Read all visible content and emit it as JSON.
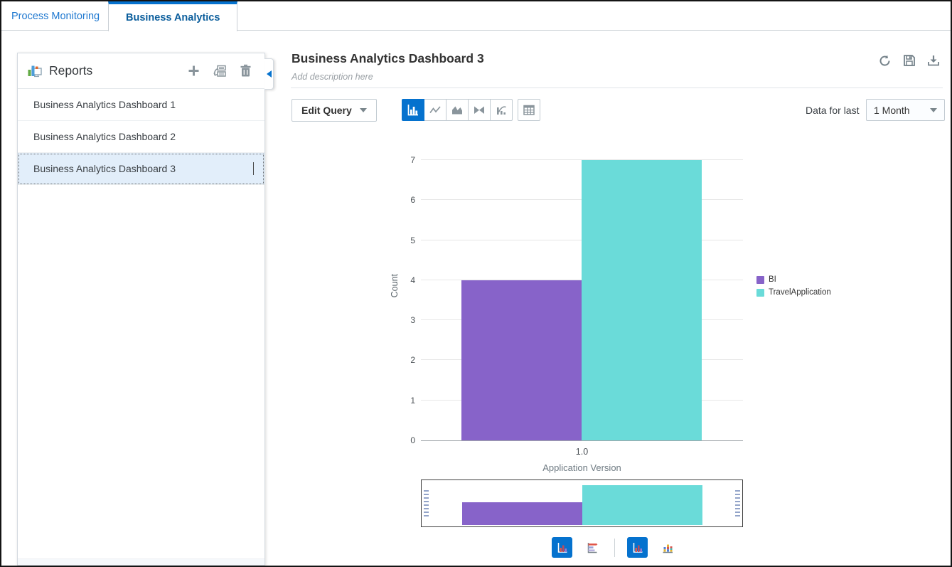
{
  "tabs": [
    {
      "label": "Process Monitoring",
      "active": false
    },
    {
      "label": "Business Analytics",
      "active": true
    }
  ],
  "sidebar": {
    "title": "Reports",
    "icon": "reports-analytics-icon",
    "actions": [
      {
        "name": "add-report",
        "icon": "plus-icon"
      },
      {
        "name": "duplicate-report",
        "icon": "duplicate-icon"
      },
      {
        "name": "delete-report",
        "icon": "trash-icon"
      }
    ],
    "collapse_icon": "collapse-left-icon",
    "items": [
      {
        "label": "Business Analytics Dashboard 1",
        "selected": false
      },
      {
        "label": "Business Analytics Dashboard 2",
        "selected": false
      },
      {
        "label": "Business Analytics Dashboard 3",
        "selected": true
      }
    ]
  },
  "main": {
    "title": "Business Analytics Dashboard 3",
    "description_placeholder": "Add description here",
    "header_actions": [
      {
        "name": "refresh",
        "icon": "refresh-icon"
      },
      {
        "name": "save",
        "icon": "save-icon"
      },
      {
        "name": "download",
        "icon": "download-icon"
      }
    ],
    "toolbar": {
      "edit_query_label": "Edit Query",
      "chart_type_buttons": [
        {
          "icon": "bar-chart-icon",
          "selected": true
        },
        {
          "icon": "line-chart-icon",
          "selected": false
        },
        {
          "icon": "area-chart-icon",
          "selected": false
        },
        {
          "icon": "combo-chart-icon",
          "selected": false
        },
        {
          "icon": "pareto-chart-icon",
          "selected": false
        }
      ],
      "table_button": {
        "icon": "table-icon",
        "selected": false
      },
      "data_for_last_label": "Data for last",
      "period_select": {
        "value": "1 Month"
      }
    },
    "footer_toggles": [
      {
        "icon": "vertical-bar-icon",
        "selected": true,
        "group": "orientation"
      },
      {
        "icon": "horizontal-bar-icon",
        "selected": false,
        "group": "orientation"
      },
      {
        "icon": "unstacked-bar-icon",
        "selected": true,
        "group": "stacking"
      },
      {
        "icon": "stacked-bar-icon",
        "selected": false,
        "group": "stacking"
      }
    ]
  },
  "chart_data": {
    "type": "bar",
    "categories": [
      "1.0"
    ],
    "series": [
      {
        "name": "BI",
        "values": [
          4
        ],
        "color": "#8763c9"
      },
      {
        "name": "TravelApplication",
        "values": [
          7
        ],
        "color": "#6adbd9"
      }
    ],
    "xlabel": "Application Version",
    "ylabel": "Count",
    "ylim": [
      0,
      7
    ],
    "yticks": [
      0,
      1,
      2,
      3,
      4,
      5,
      6,
      7
    ],
    "legend_position": "right",
    "grid": true,
    "overview": true
  },
  "colors": {
    "accent": "#0572ce",
    "bar_bi": "#8763c9",
    "bar_travel": "#6adbd9",
    "icon_gray": "#8a959c",
    "selected_item_bg": "#e2eefa"
  }
}
